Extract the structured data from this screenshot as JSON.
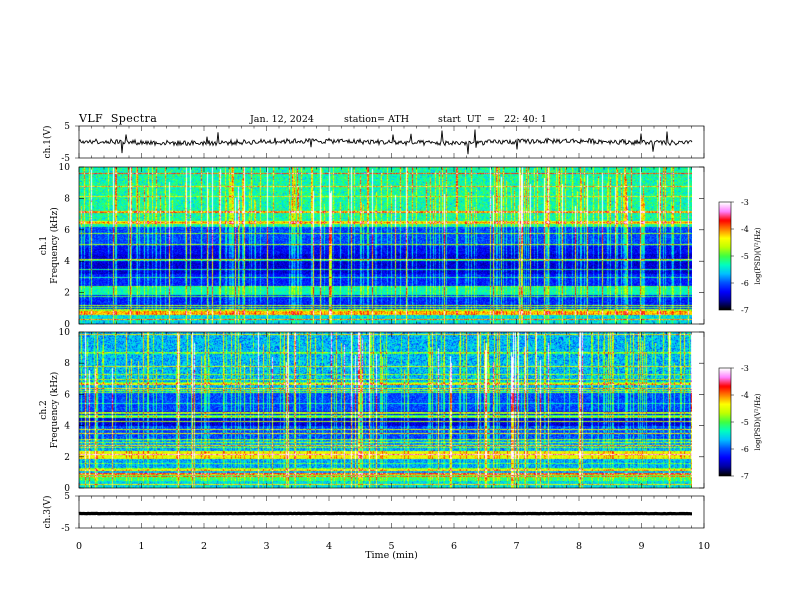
{
  "header": {
    "title": "VLF  Spectra",
    "date": "Jan. 12, 2024",
    "station": "station= ATH",
    "start": "start  UT  =   22: 40: 1"
  },
  "chart_data": [
    {
      "type": "line",
      "ylabel": "ch.1(V)",
      "ylim": [
        -5,
        5
      ],
      "yticks": [
        "5",
        "-5"
      ],
      "xlim": [
        0,
        10
      ],
      "series": [
        {
          "color": "#000000",
          "level": 0,
          "noise": 0.8
        }
      ]
    },
    {
      "type": "heatmap",
      "ylabel": "ch.1",
      "ylabel2": "Frequency (kHz)",
      "ylim": [
        0,
        10
      ],
      "yticks": [
        "10",
        "8",
        "6",
        "4",
        "2",
        "0"
      ],
      "xlim": [
        0,
        9.8
      ],
      "colorbar": {
        "label": "log(PSD)(V²/Hz)",
        "ticks": [
          "-3",
          "-4",
          "-5",
          "-6",
          "-7"
        ],
        "range": [
          -7,
          -3
        ]
      }
    },
    {
      "type": "heatmap",
      "ylabel": "ch.2",
      "ylabel2": "Frequency (kHz)",
      "ylim": [
        0,
        10
      ],
      "yticks": [
        "10",
        "8",
        "6",
        "4",
        "2",
        "0"
      ],
      "xlim": [
        0,
        9.8
      ],
      "colorbar": {
        "label": "log(PSD)(V²/Hz)",
        "ticks": [
          "-3",
          "-4",
          "-5",
          "-6",
          "-7"
        ],
        "range": [
          -7,
          -3
        ]
      }
    },
    {
      "type": "line",
      "ylabel": "ch.3(V)",
      "ylim": [
        -5,
        5
      ],
      "yticks": [
        "5",
        "-5"
      ],
      "xlabel": "Time  (min)",
      "xlim": [
        0,
        10
      ],
      "xticks": [
        "0",
        "1",
        "2",
        "3",
        "4",
        "5",
        "6",
        "7",
        "8",
        "9",
        "10"
      ],
      "series": [
        {
          "color": "#000000",
          "level": -0.5,
          "noise": 0.05
        }
      ]
    }
  ],
  "colors": {
    "colormap": [
      "#000000",
      "#0000a0",
      "#0000ff",
      "#0050ff",
      "#00c0ff",
      "#00ffc0",
      "#40ff40",
      "#c0ff00",
      "#ffff00",
      "#ff8000",
      "#ff0000",
      "#ff80ff",
      "#ffffff"
    ]
  }
}
